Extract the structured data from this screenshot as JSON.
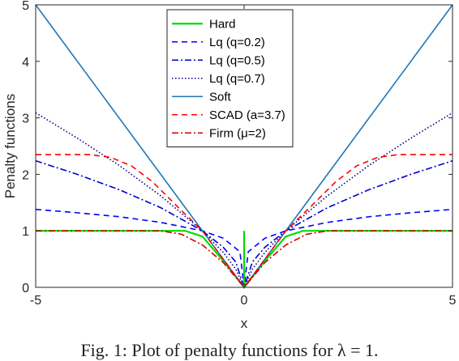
{
  "caption": "Fig. 1: Plot of penalty functions for λ = 1.",
  "chart_data": {
    "type": "line",
    "xlabel": "x",
    "ylabel": "Penalty functions",
    "xlim": [
      -5,
      5
    ],
    "ylim": [
      0,
      5
    ],
    "xticks": [
      "-5",
      "0",
      "5"
    ],
    "yticks": [
      "0",
      "1",
      "2",
      "3",
      "4",
      "5"
    ],
    "grid": false,
    "legend_position": "top-center",
    "series": [
      {
        "name": "Hard",
        "color": "#00dd00",
        "dash": "solid",
        "points": [
          [
            -5,
            1
          ],
          [
            -1.41,
            1
          ],
          [
            -1,
            0.9
          ],
          [
            -0.5,
            0.47
          ],
          [
            0,
            0
          ],
          [
            0.5,
            0.47
          ],
          [
            1,
            0.9
          ],
          [
            1.41,
            1
          ],
          [
            5,
            1
          ]
        ]
      },
      {
        "name": "Lq (q=0.2)",
        "color": "#0000ff",
        "dash": "dashed",
        "points": [
          [
            -5,
            1.38
          ],
          [
            -4,
            1.32
          ],
          [
            -3,
            1.25
          ],
          [
            -2,
            1.15
          ],
          [
            -1,
            1.0
          ],
          [
            -0.5,
            0.87
          ],
          [
            -0.1,
            0.63
          ],
          [
            0,
            0
          ],
          [
            0.1,
            0.63
          ],
          [
            0.5,
            0.87
          ],
          [
            1,
            1.0
          ],
          [
            2,
            1.15
          ],
          [
            3,
            1.25
          ],
          [
            4,
            1.32
          ],
          [
            5,
            1.38
          ]
        ]
      },
      {
        "name": "Lq (q=0.5)",
        "color": "#0000cc",
        "dash": "dashdot",
        "points": [
          [
            -5,
            2.24
          ],
          [
            -4,
            2.0
          ],
          [
            -3,
            1.73
          ],
          [
            -2,
            1.41
          ],
          [
            -1,
            1.0
          ],
          [
            -0.5,
            0.71
          ],
          [
            -0.2,
            0.45
          ],
          [
            0,
            0
          ],
          [
            0.2,
            0.45
          ],
          [
            0.5,
            0.71
          ],
          [
            1,
            1.0
          ],
          [
            2,
            1.41
          ],
          [
            3,
            1.73
          ],
          [
            4,
            2.0
          ],
          [
            5,
            2.24
          ]
        ]
      },
      {
        "name": "Lq (q=0.7)",
        "color": "#00008b",
        "dash": "dotted",
        "points": [
          [
            -5,
            3.09
          ],
          [
            -4,
            2.64
          ],
          [
            -3,
            2.16
          ],
          [
            -2,
            1.62
          ],
          [
            -1,
            1.0
          ],
          [
            -0.5,
            0.62
          ],
          [
            -0.2,
            0.32
          ],
          [
            0,
            0
          ],
          [
            0.2,
            0.32
          ],
          [
            0.5,
            0.62
          ],
          [
            1,
            1.0
          ],
          [
            2,
            1.62
          ],
          [
            3,
            2.16
          ],
          [
            4,
            2.64
          ],
          [
            5,
            3.09
          ]
        ]
      },
      {
        "name": "Soft",
        "color": "#1f77b4",
        "dash": "solid",
        "points": [
          [
            -5,
            5
          ],
          [
            0,
            0
          ],
          [
            5,
            5
          ]
        ]
      },
      {
        "name": "SCAD (a=3.7)",
        "color": "#ff0000",
        "dash": "dashed",
        "points": [
          [
            -5,
            2.35
          ],
          [
            -3.7,
            2.35
          ],
          [
            -3.2,
            2.3
          ],
          [
            -2.7,
            2.15
          ],
          [
            -2.2,
            1.87
          ],
          [
            -1.6,
            1.43
          ],
          [
            -1,
            1.0
          ],
          [
            0,
            0
          ],
          [
            1,
            1.0
          ],
          [
            1.6,
            1.43
          ],
          [
            2.2,
            1.87
          ],
          [
            2.7,
            2.15
          ],
          [
            3.2,
            2.3
          ],
          [
            3.7,
            2.35
          ],
          [
            5,
            2.35
          ]
        ]
      },
      {
        "name": "Firm (μ=2)",
        "color": "#cc0000",
        "dash": "dashdot",
        "points": [
          [
            -5,
            1
          ],
          [
            -2,
            1
          ],
          [
            -1.5,
            0.94
          ],
          [
            -1,
            0.75
          ],
          [
            -0.5,
            0.44
          ],
          [
            0,
            0
          ],
          [
            0.5,
            0.44
          ],
          [
            1,
            0.75
          ],
          [
            1.5,
            0.94
          ],
          [
            2,
            1
          ],
          [
            5,
            1
          ]
        ]
      }
    ]
  }
}
